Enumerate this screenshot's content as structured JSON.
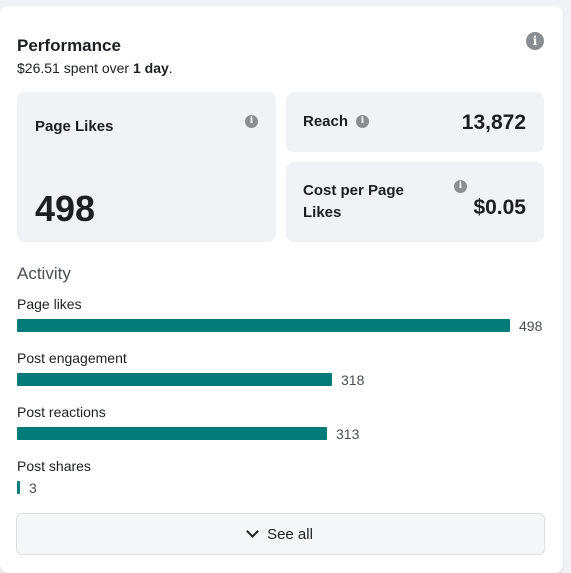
{
  "card": {
    "title": "Performance",
    "spent_amount": "$26.51",
    "spent_mid": " spent over ",
    "spent_duration": "1 day",
    "spent_end": "."
  },
  "metrics": {
    "page_likes": {
      "label": "Page Likes",
      "value": "498"
    },
    "reach": {
      "label": "Reach",
      "value": "13,872"
    },
    "cost_per_like": {
      "label_line1": "Cost per Page",
      "label_line2": "Likes",
      "value": "$0.05"
    }
  },
  "activity": {
    "heading": "Activity",
    "max": 498,
    "items": [
      {
        "label": "Page likes",
        "value": 498,
        "display": "498"
      },
      {
        "label": "Post engagement",
        "value": 318,
        "display": "318"
      },
      {
        "label": "Post reactions",
        "value": 313,
        "display": "313"
      },
      {
        "label": "Post shares",
        "value": 3,
        "display": "3"
      }
    ]
  },
  "see_all": {
    "label": "See all"
  },
  "icons": {
    "info": "info-icon",
    "chevron": "chevron-down-icon"
  },
  "colors": {
    "bar": "#047b7b",
    "tile_bg": "#f0f2f5"
  }
}
